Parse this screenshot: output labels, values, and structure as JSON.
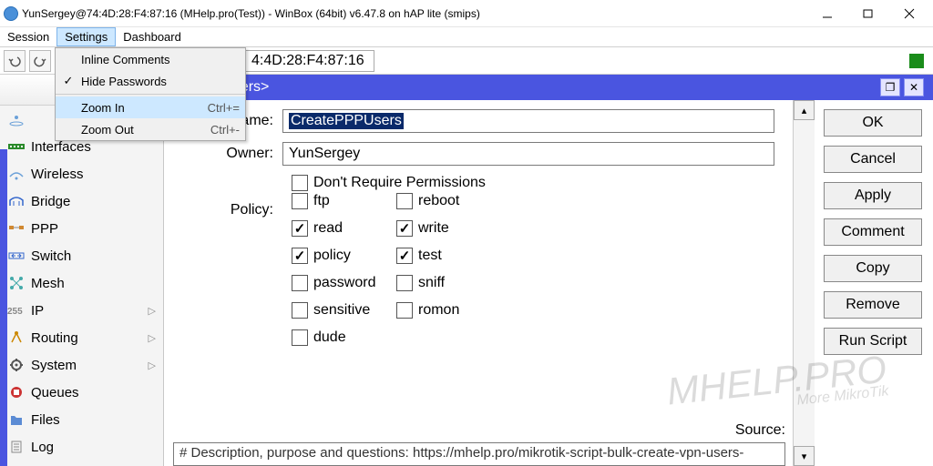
{
  "colors": {
    "accent": "#4a55e0",
    "menu_highlight": "#cde8ff"
  },
  "titlebar": {
    "text": "YunSergey@74:4D:28:F4:87:16 (MHelp.pro(Test)) - WinBox (64bit) v6.47.8 on hAP lite (smips)"
  },
  "menubar": {
    "items": [
      "Session",
      "Settings",
      "Dashboard"
    ],
    "selected_index": 1
  },
  "dropdown": {
    "items": [
      {
        "label": "Inline Comments",
        "checked": false,
        "shortcut": ""
      },
      {
        "label": "Hide Passwords",
        "checked": true,
        "shortcut": ""
      },
      {
        "sep": true
      },
      {
        "label": "Zoom In",
        "checked": false,
        "shortcut": "Ctrl+=",
        "hover": true
      },
      {
        "label": "Zoom Out",
        "checked": false,
        "shortcut": "Ctrl+-"
      }
    ]
  },
  "toolbar": {
    "address": "4:4D:28:F4:87:16"
  },
  "sidebar": {
    "items": [
      {
        "label": "Interfaces",
        "icon": "interfaces"
      },
      {
        "label": "Wireless",
        "icon": "wireless"
      },
      {
        "label": "Bridge",
        "icon": "bridge"
      },
      {
        "label": "PPP",
        "icon": "ppp"
      },
      {
        "label": "Switch",
        "icon": "switch"
      },
      {
        "label": "Mesh",
        "icon": "mesh"
      },
      {
        "label": "IP",
        "icon": "ip",
        "submenu": true
      },
      {
        "label": "Routing",
        "icon": "routing",
        "submenu": true
      },
      {
        "label": "System",
        "icon": "system",
        "submenu": true
      },
      {
        "label": "Queues",
        "icon": "queues"
      },
      {
        "label": "Files",
        "icon": "files"
      },
      {
        "label": "Log",
        "icon": "log"
      }
    ]
  },
  "subwindow": {
    "title_suffix": "atePPPUsers>",
    "name_label": "Name:",
    "name_value": "CreatePPPUsers",
    "owner_label": "Owner:",
    "owner_value": "YunSergey",
    "dont_require_label": "Don't Require Permissions",
    "policy_label": "Policy:",
    "policies": [
      {
        "label": "ftp",
        "checked": false
      },
      {
        "label": "reboot",
        "checked": false
      },
      {
        "label": "read",
        "checked": true
      },
      {
        "label": "write",
        "checked": true
      },
      {
        "label": "policy",
        "checked": true
      },
      {
        "label": "test",
        "checked": true
      },
      {
        "label": "password",
        "checked": false
      },
      {
        "label": "sniff",
        "checked": false
      },
      {
        "label": "sensitive",
        "checked": false
      },
      {
        "label": "romon",
        "checked": false
      },
      {
        "label": "dude",
        "checked": false
      }
    ],
    "source_label": "Source:",
    "source_value": "# Description, purpose and questions: https://mhelp.pro/mikrotik-script-bulk-create-vpn-users-"
  },
  "buttons": {
    "ok": "OK",
    "cancel": "Cancel",
    "apply": "Apply",
    "comment": "Comment",
    "copy": "Copy",
    "remove": "Remove",
    "run": "Run Script"
  },
  "watermark": {
    "main": "MHELP.PRO",
    "sub": "More MikroTik"
  }
}
